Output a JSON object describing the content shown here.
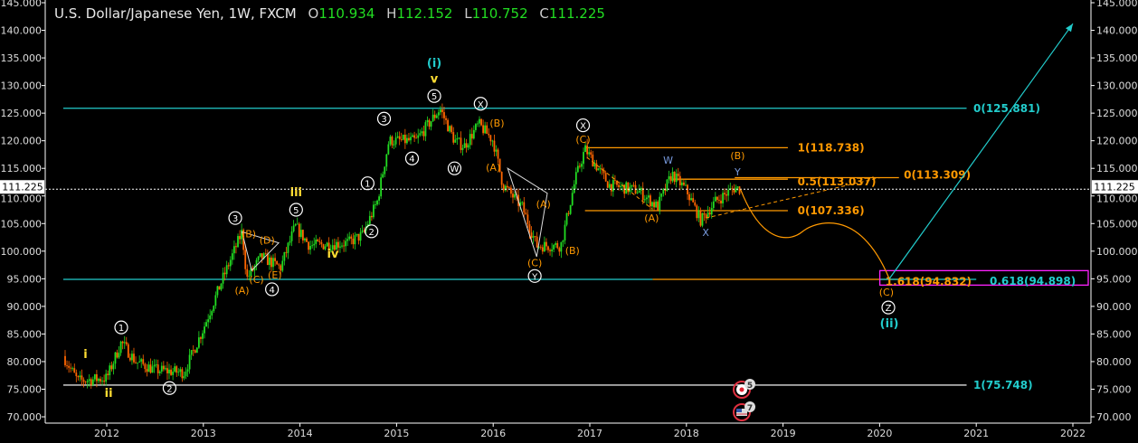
{
  "header": {
    "symbol": "U.S. Dollar/Japanese Yen, 1W, FXCM",
    "open_label": "O",
    "open": "110.934",
    "high_label": "H",
    "high": "112.152",
    "low_label": "L",
    "low": "110.752",
    "close_label": "C",
    "close": "111.225"
  },
  "chart_data": {
    "type": "candlestick",
    "ylim": [
      70,
      145
    ],
    "xlim": [
      2011.6,
      2022.1
    ],
    "y_ticks": [
      "70.000",
      "75.000",
      "80.000",
      "85.000",
      "90.000",
      "95.000",
      "100.000",
      "105.000",
      "110.000",
      "115.000",
      "120.000",
      "125.000",
      "130.000",
      "135.000",
      "140.000",
      "145.000"
    ],
    "x_ticks": [
      "2012",
      "2013",
      "2014",
      "2015",
      "2016",
      "2017",
      "2018",
      "2019",
      "2020",
      "2021",
      "2022"
    ],
    "current_price": "111.225",
    "colors": {
      "up": "#22dd22",
      "down": "#ff6600",
      "cyan": "#22cccc",
      "orange": "#ff9900",
      "yellow": "#ffdd33",
      "blue": "#7799dd",
      "magenta": "#ff22ff"
    },
    "price_path": [
      [
        2011.55,
        81
      ],
      [
        2011.7,
        76.5
      ],
      [
        2012.0,
        77
      ],
      [
        2012.15,
        83.5
      ],
      [
        2012.3,
        80
      ],
      [
        2012.5,
        78.5
      ],
      [
        2012.8,
        78
      ],
      [
        2013.0,
        86
      ],
      [
        2013.2,
        95
      ],
      [
        2013.4,
        103.5
      ],
      [
        2013.45,
        95
      ],
      [
        2013.6,
        99
      ],
      [
        2013.8,
        97
      ],
      [
        2013.95,
        104.5
      ],
      [
        2014.1,
        101
      ],
      [
        2014.5,
        101.5
      ],
      [
        2014.65,
        103
      ],
      [
        2014.8,
        109
      ],
      [
        2014.92,
        120
      ],
      [
        2015.2,
        120
      ],
      [
        2015.45,
        125.8
      ],
      [
        2015.6,
        120
      ],
      [
        2015.7,
        119
      ],
      [
        2015.85,
        123
      ],
      [
        2016.0,
        120
      ],
      [
        2016.1,
        112
      ],
      [
        2016.3,
        108
      ],
      [
        2016.45,
        101
      ],
      [
        2016.7,
        101
      ],
      [
        2016.85,
        113
      ],
      [
        2016.95,
        118.5
      ],
      [
        2017.2,
        112
      ],
      [
        2017.5,
        111
      ],
      [
        2017.7,
        108
      ],
      [
        2017.85,
        114
      ],
      [
        2018.0,
        111
      ],
      [
        2018.15,
        105.5
      ],
      [
        2018.3,
        109
      ],
      [
        2018.5,
        111.5
      ],
      [
        2018.56,
        111.2
      ]
    ],
    "levels": [
      {
        "label": "0(125.881)",
        "price": 125.881,
        "color": "cyan"
      },
      {
        "label": "0.618(94.898)",
        "price": 94.898,
        "color": "cyan"
      },
      {
        "label": "1(75.748)",
        "price": 75.748,
        "color": "cyan"
      },
      {
        "label": "1(118.738)",
        "price": 118.738,
        "color": "orange"
      },
      {
        "label": "0.5(113.037)",
        "price": 113.037,
        "color": "orange"
      },
      {
        "label": "0(113.309)",
        "price": 113.309,
        "color": "orange"
      },
      {
        "label": "0(107.336)",
        "price": 107.336,
        "color": "orange"
      },
      {
        "label": "1.618(94.832)",
        "price": 94.832,
        "color": "orange"
      }
    ],
    "wave_labels": [
      {
        "t": "i",
        "d": 2011.78,
        "p": 81.3,
        "c": "yellow"
      },
      {
        "t": "ii",
        "d": 2012.02,
        "p": 74.3,
        "c": "yellow"
      },
      {
        "t": "1",
        "d": 2012.15,
        "p": 86.2,
        "c": "circle"
      },
      {
        "t": "2",
        "d": 2012.65,
        "p": 75.2,
        "c": "circle"
      },
      {
        "t": "3",
        "d": 2013.33,
        "p": 106,
        "c": "circle"
      },
      {
        "t": "(A)",
        "d": 2013.4,
        "p": 92.9,
        "c": "orange"
      },
      {
        "t": "(B)",
        "d": 2013.47,
        "p": 103.2,
        "c": "orange"
      },
      {
        "t": "(C)",
        "d": 2013.55,
        "p": 94.9,
        "c": "orange"
      },
      {
        "t": "(D)",
        "d": 2013.66,
        "p": 102,
        "c": "orange"
      },
      {
        "t": "(E)",
        "d": 2013.74,
        "p": 95.7,
        "c": "orange"
      },
      {
        "t": "4",
        "d": 2013.71,
        "p": 93.1,
        "c": "circle"
      },
      {
        "t": "5",
        "d": 2013.96,
        "p": 107.5,
        "c": "circle"
      },
      {
        "t": "iii",
        "d": 2013.96,
        "p": 110.6,
        "c": "yellow"
      },
      {
        "t": "iv",
        "d": 2014.34,
        "p": 99.5,
        "c": "yellow"
      },
      {
        "t": "1",
        "d": 2014.7,
        "p": 112.3,
        "c": "circle"
      },
      {
        "t": "2",
        "d": 2014.74,
        "p": 103.6,
        "c": "circle"
      },
      {
        "t": "3",
        "d": 2014.87,
        "p": 124,
        "c": "circle"
      },
      {
        "t": "4",
        "d": 2015.16,
        "p": 116.8,
        "c": "circle"
      },
      {
        "t": "5",
        "d": 2015.39,
        "p": 128.1,
        "c": "circle"
      },
      {
        "t": "v",
        "d": 2015.39,
        "p": 131.2,
        "c": "yellow"
      },
      {
        "t": "(i)",
        "d": 2015.39,
        "p": 134,
        "c": "cyan"
      },
      {
        "t": "W",
        "d": 2015.6,
        "p": 115,
        "c": "circle"
      },
      {
        "t": "X",
        "d": 2015.87,
        "p": 126.7,
        "c": "circle"
      },
      {
        "t": "(B)",
        "d": 2016.04,
        "p": 123.2,
        "c": "orange"
      },
      {
        "t": "(A)",
        "d": 2016.0,
        "p": 115.2,
        "c": "orange"
      },
      {
        "t": "(A)",
        "d": 2016.52,
        "p": 108.6,
        "c": "orange"
      },
      {
        "t": "(B)",
        "d": 2016.82,
        "p": 100.1,
        "c": "orange"
      },
      {
        "t": "(C)",
        "d": 2016.43,
        "p": 96.8,
        "c": "orange"
      },
      {
        "t": "Y",
        "d": 2016.43,
        "p": 95.5,
        "c": "circle"
      },
      {
        "t": "X",
        "d": 2016.93,
        "p": 122.8,
        "c": "circle"
      },
      {
        "t": "(C)",
        "d": 2016.93,
        "p": 120.3,
        "c": "orange"
      },
      {
        "t": "W",
        "d": 2017.81,
        "p": 116.5,
        "c": "blue"
      },
      {
        "t": "(A)",
        "d": 2017.64,
        "p": 106,
        "c": "orange"
      },
      {
        "t": "X",
        "d": 2018.2,
        "p": 103.4,
        "c": "blue"
      },
      {
        "t": "(B)",
        "d": 2018.53,
        "p": 116.2,
        "c": "orange"
      },
      {
        "t": "Y",
        "d": 2018.53,
        "p": 114.9,
        "c": "blue"
      },
      {
        "t": "(C)",
        "d": 2020.07,
        "p": 92.6,
        "c": "orange"
      },
      {
        "t": "Z",
        "d": 2020.09,
        "p": 89.8,
        "c": "circle"
      },
      {
        "t": "(ii)",
        "d": 2020.1,
        "p": 86.9,
        "c": "cyan"
      }
    ],
    "projection": [
      [
        2018.56,
        111.2
      ],
      [
        2018.9,
        103.2
      ],
      [
        2019.5,
        106
      ],
      [
        2020.1,
        95
      ]
    ],
    "target_arrow": [
      [
        2020.1,
        95
      ],
      [
        2022.0,
        141.2
      ]
    ],
    "events": [
      {
        "icon": "japan-flag",
        "count": "5"
      },
      {
        "icon": "us-flag",
        "count": "7"
      }
    ]
  }
}
